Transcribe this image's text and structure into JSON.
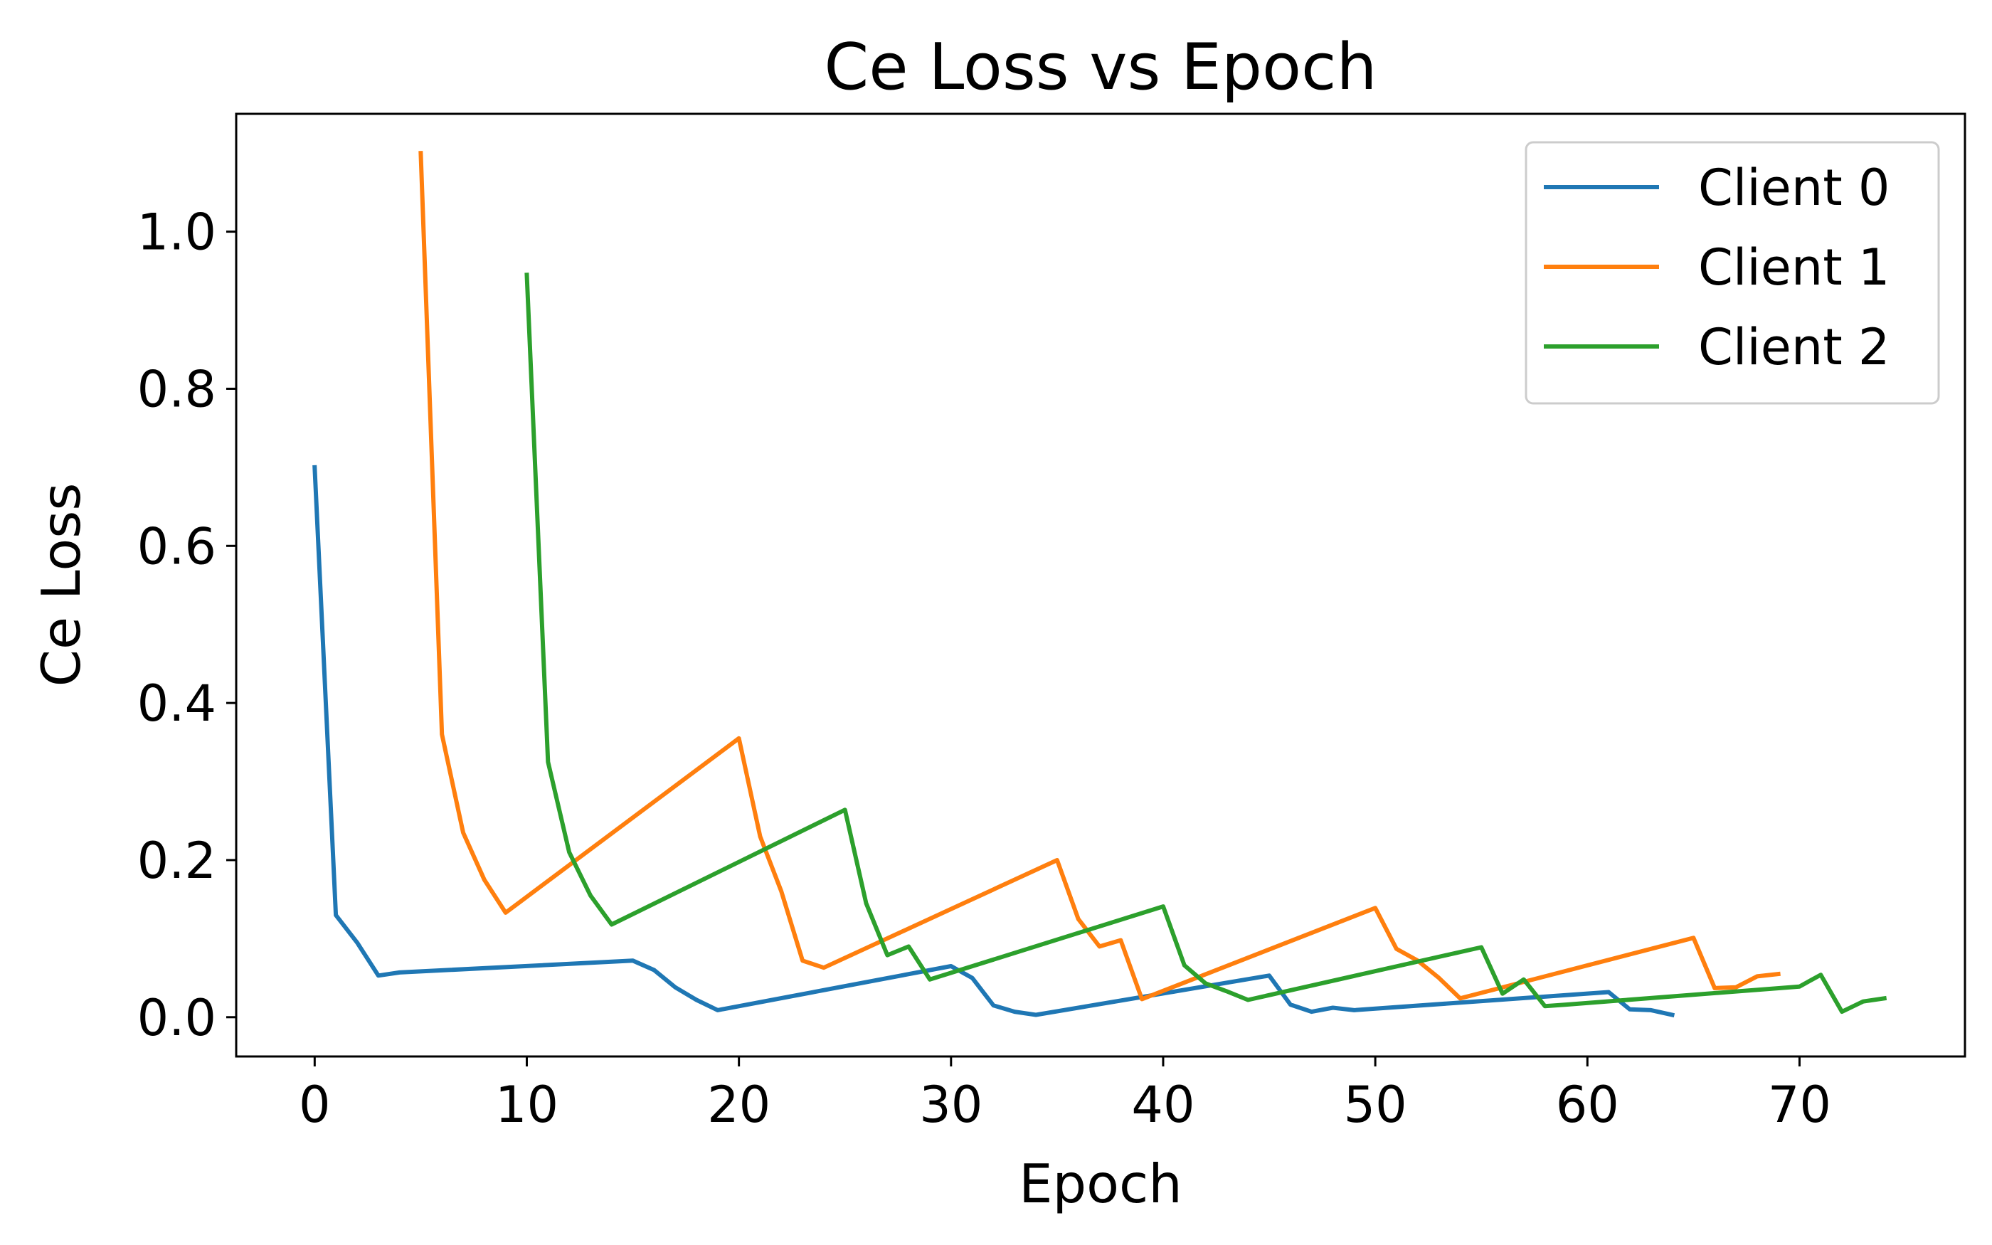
{
  "chart_data": {
    "type": "line",
    "title": "Ce Loss vs Epoch",
    "xlabel": "Epoch",
    "ylabel": "Ce Loss",
    "xlim": [
      -3.7,
      77.8
    ],
    "ylim": [
      -0.05,
      1.15
    ],
    "xticks": [
      0,
      10,
      20,
      30,
      40,
      50,
      60,
      70
    ],
    "yticks": [
      0.0,
      0.2,
      0.4,
      0.6,
      0.8,
      1.0
    ],
    "grid": false,
    "legend_position": "top-right",
    "series": [
      {
        "name": "Client 0",
        "color": "#1f77b4",
        "x": [
          0,
          1,
          2,
          3,
          4,
          15,
          16,
          17,
          18,
          19,
          30,
          31,
          32,
          33,
          34,
          45,
          46,
          47,
          48,
          49,
          61,
          62,
          63,
          64
        ],
        "y": [
          0.7,
          0.13,
          0.095,
          0.053,
          0.057,
          0.072,
          0.06,
          0.038,
          0.022,
          0.009,
          0.065,
          0.05,
          0.015,
          0.007,
          0.003,
          0.053,
          0.016,
          0.007,
          0.012,
          0.009,
          0.032,
          0.01,
          0.009,
          0.003
        ]
      },
      {
        "name": "Client 1",
        "color": "#ff7f0e",
        "x": [
          5,
          6,
          7,
          8,
          9,
          20,
          21,
          22,
          23,
          24,
          35,
          36,
          37,
          38,
          39,
          50,
          51,
          52,
          53,
          54,
          65,
          66,
          67,
          68,
          69
        ],
        "y": [
          1.1,
          0.36,
          0.235,
          0.175,
          0.133,
          0.355,
          0.23,
          0.16,
          0.072,
          0.063,
          0.2,
          0.125,
          0.09,
          0.098,
          0.023,
          0.139,
          0.087,
          0.072,
          0.05,
          0.024,
          0.101,
          0.037,
          0.038,
          0.052,
          0.055
        ]
      },
      {
        "name": "Client 2",
        "color": "#2ca02c",
        "x": [
          10,
          11,
          12,
          13,
          14,
          25,
          26,
          27,
          28,
          29,
          40,
          41,
          42,
          43,
          44,
          55,
          56,
          57,
          58,
          59,
          70,
          71,
          72,
          73,
          74
        ],
        "y": [
          0.945,
          0.325,
          0.21,
          0.155,
          0.118,
          0.264,
          0.145,
          0.079,
          0.09,
          0.048,
          0.141,
          0.066,
          0.043,
          0.033,
          0.022,
          0.089,
          0.03,
          0.048,
          0.014,
          0.016,
          0.039,
          0.054,
          0.007,
          0.02,
          0.024
        ]
      }
    ]
  }
}
